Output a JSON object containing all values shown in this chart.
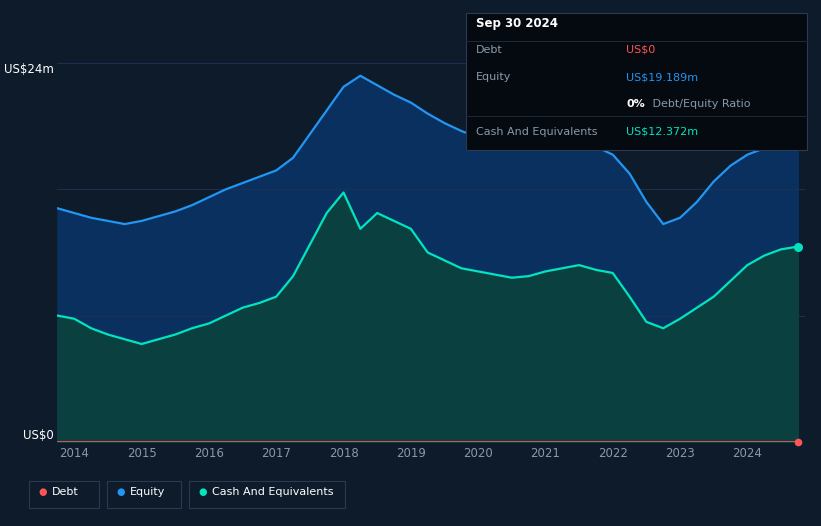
{
  "background_color": "#0d1b2a",
  "plot_bg_color": "#0d1b2a",
  "y_label_top": "US$24m",
  "y_label_bottom": "US$0",
  "equity_color": "#2196f3",
  "cash_color": "#00e5c0",
  "debt_color": "#ff5555",
  "fill_equity_color": "#0a3060",
  "fill_cash_color": "#0a4040",
  "grid_color": "#1e3050",
  "text_color": "#8899aa",
  "white_color": "#ffffff",
  "years": [
    2013.75,
    2014.0,
    2014.25,
    2014.5,
    2014.75,
    2015.0,
    2015.25,
    2015.5,
    2015.75,
    2016.0,
    2016.25,
    2016.5,
    2016.75,
    2017.0,
    2017.25,
    2017.5,
    2017.75,
    2018.0,
    2018.25,
    2018.5,
    2018.75,
    2019.0,
    2019.25,
    2019.5,
    2019.75,
    2020.0,
    2020.25,
    2020.5,
    2020.75,
    2021.0,
    2021.25,
    2021.5,
    2021.75,
    2022.0,
    2022.25,
    2022.5,
    2022.75,
    2023.0,
    2023.25,
    2023.5,
    2023.75,
    2024.0,
    2024.25,
    2024.5,
    2024.75
  ],
  "equity": [
    14.8,
    14.5,
    14.2,
    14.0,
    13.8,
    14.0,
    14.3,
    14.6,
    15.0,
    15.5,
    16.0,
    16.4,
    16.8,
    17.2,
    18.0,
    19.5,
    21.0,
    22.5,
    23.2,
    22.6,
    22.0,
    21.5,
    20.8,
    20.2,
    19.7,
    19.3,
    19.0,
    18.8,
    18.5,
    18.7,
    18.9,
    19.1,
    18.7,
    18.2,
    17.0,
    15.2,
    13.8,
    14.2,
    15.2,
    16.5,
    17.5,
    18.2,
    18.6,
    19.0,
    19.189
  ],
  "cash": [
    8.0,
    7.8,
    7.2,
    6.8,
    6.5,
    6.2,
    6.5,
    6.8,
    7.2,
    7.5,
    8.0,
    8.5,
    8.8,
    9.2,
    10.5,
    12.5,
    14.5,
    15.8,
    13.5,
    14.5,
    14.0,
    13.5,
    12.0,
    11.5,
    11.0,
    10.8,
    10.6,
    10.4,
    10.5,
    10.8,
    11.0,
    11.2,
    10.9,
    10.7,
    9.2,
    7.6,
    7.2,
    7.8,
    8.5,
    9.2,
    10.2,
    11.2,
    11.8,
    12.2,
    12.372
  ],
  "debt": [
    0.0,
    0.0,
    0.0,
    0.0,
    0.0,
    0.0,
    0.0,
    0.0,
    0.0,
    0.0,
    0.0,
    0.0,
    0.0,
    0.0,
    0.0,
    0.0,
    0.0,
    0.0,
    0.0,
    0.0,
    0.0,
    0.0,
    0.0,
    0.0,
    0.0,
    0.0,
    0.0,
    0.0,
    0.0,
    0.0,
    0.0,
    0.0,
    0.0,
    0.0,
    0.0,
    0.0,
    0.0,
    0.0,
    0.0,
    0.0,
    0.0,
    0.0,
    0.0,
    0.0,
    0.0
  ],
  "ylim": [
    0,
    24
  ],
  "xlim": [
    2013.75,
    2024.85
  ],
  "x_ticks": [
    2014,
    2015,
    2016,
    2017,
    2018,
    2019,
    2020,
    2021,
    2022,
    2023,
    2024
  ],
  "tooltip": {
    "date": "Sep 30 2024",
    "debt_label": "Debt",
    "debt_value": "US$0",
    "equity_label": "Equity",
    "equity_value": "US$19.189m",
    "ratio_bold": "0%",
    "ratio_rest": " Debt/Equity Ratio",
    "cash_label": "Cash And Equivalents",
    "cash_value": "US$12.372m"
  },
  "legend_items": [
    {
      "label": "Debt",
      "color": "#ff5555"
    },
    {
      "label": "Equity",
      "color": "#2196f3"
    },
    {
      "label": "Cash And Equivalents",
      "color": "#00e5c0"
    }
  ]
}
